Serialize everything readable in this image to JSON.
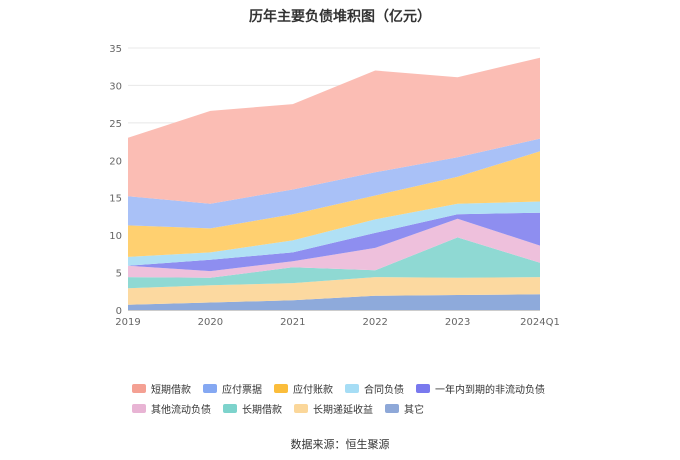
{
  "chart_data": {
    "type": "area",
    "title": "历年主要负债堆积图（亿元）",
    "stacked": true,
    "x": [
      "2019",
      "2020",
      "2021",
      "2022",
      "2023",
      "2024Q1"
    ],
    "ylim": [
      0,
      35
    ],
    "yticks": [
      0,
      5,
      10,
      15,
      20,
      25,
      30,
      35
    ],
    "grid": true,
    "legend_position": "bottom",
    "series": [
      {
        "name": "其它",
        "color": "#8eaadb",
        "values": [
          0.7,
          1.0,
          1.3,
          1.9,
          2.0,
          2.1
        ]
      },
      {
        "name": "长期递延收益",
        "color": "#fcd9a0",
        "values": [
          2.2,
          2.3,
          2.3,
          2.5,
          2.3,
          2.3
        ]
      },
      {
        "name": "长期借款",
        "color": "#8fd9d3",
        "values": [
          1.5,
          1.0,
          2.1,
          0.9,
          5.4,
          1.9
        ]
      },
      {
        "name": "其他流动负债",
        "color": "#eec0dc",
        "values": [
          1.5,
          0.9,
          0.8,
          3.0,
          2.5,
          2.3
        ]
      },
      {
        "name": "一年内到期的非流动负债",
        "color": "#8e8ef0",
        "values": [
          0.0,
          1.5,
          1.2,
          2.0,
          0.6,
          4.4
        ]
      },
      {
        "name": "合同负债",
        "color": "#b0e0f5",
        "values": [
          1.2,
          1.0,
          1.6,
          1.8,
          1.4,
          1.5
        ]
      },
      {
        "name": "应付账款",
        "color": "#ffd070",
        "values": [
          4.2,
          3.2,
          3.5,
          3.2,
          3.6,
          6.7
        ]
      },
      {
        "name": "应付票据",
        "color": "#a9c1f7",
        "values": [
          3.9,
          3.3,
          3.3,
          3.1,
          2.6,
          1.7
        ]
      },
      {
        "name": "短期借款",
        "color": "#fbbdb4",
        "values": [
          7.8,
          12.4,
          11.4,
          13.6,
          10.7,
          10.8
        ]
      }
    ],
    "legend": [
      {
        "name": "短期借款",
        "color": "#f4a093"
      },
      {
        "name": "应付票据",
        "color": "#85a8f2"
      },
      {
        "name": "应付账款",
        "color": "#fbbd3b"
      },
      {
        "name": "合同负债",
        "color": "#a6ddf5"
      },
      {
        "name": "一年内到期的非流动负债",
        "color": "#7979ee"
      },
      {
        "name": "其他流动负债",
        "color": "#e8b4d4"
      },
      {
        "name": "长期借款",
        "color": "#7dd3cc"
      },
      {
        "name": "长期递延收益",
        "color": "#fbd79a"
      },
      {
        "name": "其它",
        "color": "#8ea8d8"
      }
    ]
  },
  "source_text": "数据来源：恒生聚源"
}
